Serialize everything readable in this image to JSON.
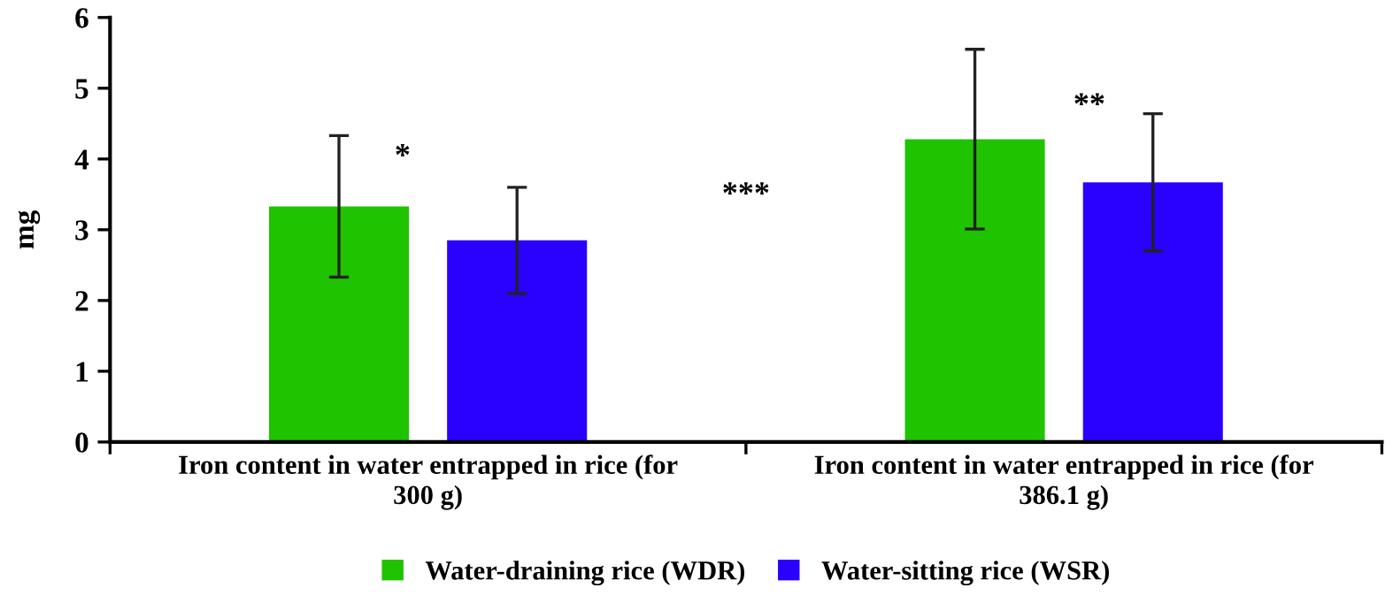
{
  "chart_data": {
    "type": "bar",
    "categories": [
      "Iron content in water entrapped in rice (for 300 g)",
      "Iron content in water entrapped in rice (for 386.1 g)"
    ],
    "ylabel": "mg",
    "series": [
      {
        "name": "Water-draining rice (WDR)",
        "color": "#1fc300",
        "values": [
          3.33,
          4.28
        ],
        "errors": [
          1.0,
          1.27
        ]
      },
      {
        "name": "Water-sitting rice (WSR)",
        "color": "#2a00ff",
        "values": [
          2.85,
          3.67
        ],
        "errors": [
          0.75,
          0.97
        ]
      }
    ],
    "ylim": [
      0,
      6
    ],
    "yticks": [
      0,
      1,
      2,
      3,
      4,
      5,
      6
    ],
    "annotations": [
      "*",
      "**",
      "***"
    ],
    "legend": "bottom",
    "grid": false
  }
}
